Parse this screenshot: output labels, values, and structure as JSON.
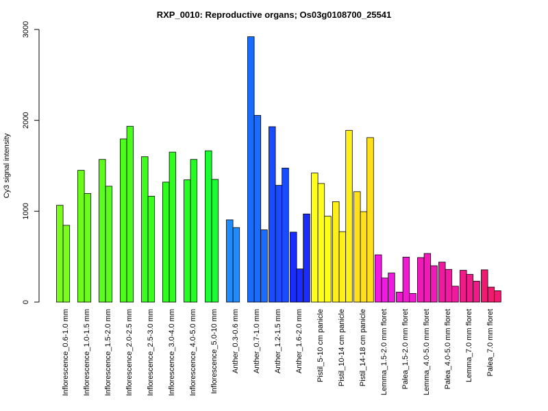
{
  "chart_data": {
    "type": "bar",
    "title": "RXP_0010: Reproductive organs; Os03g0108700_25541",
    "ylabel": "Cy3 signal intensity",
    "xlabel": "",
    "ylim": [
      0,
      3000
    ],
    "yticks": [
      0,
      1000,
      2000,
      3000
    ],
    "grid": false,
    "legend": "none",
    "groups": [
      {
        "label": "Inflorescence_0.6-1.0 mm",
        "color": "#7cfc1c",
        "values": [
          1065,
          845
        ]
      },
      {
        "label": "Inflorescence_1.0-1.5 mm",
        "color": "#6cfc1c",
        "values": [
          1450,
          1195
        ]
      },
      {
        "label": "Inflorescence_1.5-2.0 mm",
        "color": "#5cfc1c",
        "values": [
          1570,
          1275
        ]
      },
      {
        "label": "Inflorescence_2.0-2.5 mm",
        "color": "#4cfc1c",
        "values": [
          1795,
          1935
        ]
      },
      {
        "label": "Inflorescence_2.5-3.0 mm",
        "color": "#3cfc1c",
        "values": [
          1600,
          1165
        ]
      },
      {
        "label": "Inflorescence_3.0-4.0 mm",
        "color": "#30fc20",
        "values": [
          1320,
          1650
        ]
      },
      {
        "label": "Inflorescence_4.0-5.0 mm",
        "color": "#24fc24",
        "values": [
          1345,
          1570
        ]
      },
      {
        "label": "Inflorescence_5.0-10 mm",
        "color": "#1cfc34",
        "values": [
          1665,
          1350
        ]
      },
      {
        "label": "Anther_0.3-0.6 mm",
        "color": "#1e8cff",
        "values": [
          905,
          820
        ]
      },
      {
        "label": "Anther_0.7-1.0 mm",
        "color": "#1a6cff",
        "values": [
          2920,
          2055,
          795
        ]
      },
      {
        "label": "Anther_1.2-1.5 mm",
        "color": "#1a4cff",
        "values": [
          1930,
          1285,
          1475
        ]
      },
      {
        "label": "Anther_1.6-2.0 mm",
        "color": "#1a2cff",
        "values": [
          770,
          365,
          970
        ]
      },
      {
        "label": "Pistil_5-10 cm panicle",
        "color": "#ffff1a",
        "values": [
          1420,
          1305,
          945
        ]
      },
      {
        "label": "Pistil_10-14 cm panicle",
        "color": "#fff01a",
        "values": [
          1105,
          775,
          1890
        ]
      },
      {
        "label": "Pistil_14-18 cm panicle",
        "color": "#ffe01a",
        "values": [
          1215,
          995,
          1810
        ]
      },
      {
        "label": "Lemma_1.5-2.0 mm floret",
        "color": "#f01ae0",
        "values": [
          520,
          265,
          320
        ]
      },
      {
        "label": "Palea_1.5-2.0 mm floret",
        "color": "#f01ad0",
        "values": [
          110,
          495,
          95
        ]
      },
      {
        "label": "Lemma_4.0-5.0 mm floret",
        "color": "#f01ab8",
        "values": [
          490,
          535,
          400
        ]
      },
      {
        "label": "Palea_4.0-5.0 mm floret",
        "color": "#f01aa0",
        "values": [
          440,
          360,
          175
        ]
      },
      {
        "label": "Lemma_7.0 mm floret",
        "color": "#f01a88",
        "values": [
          350,
          305,
          230
        ]
      },
      {
        "label": "Palea_7.0 mm floret",
        "color": "#f01a70",
        "values": [
          355,
          165,
          125
        ]
      }
    ]
  }
}
